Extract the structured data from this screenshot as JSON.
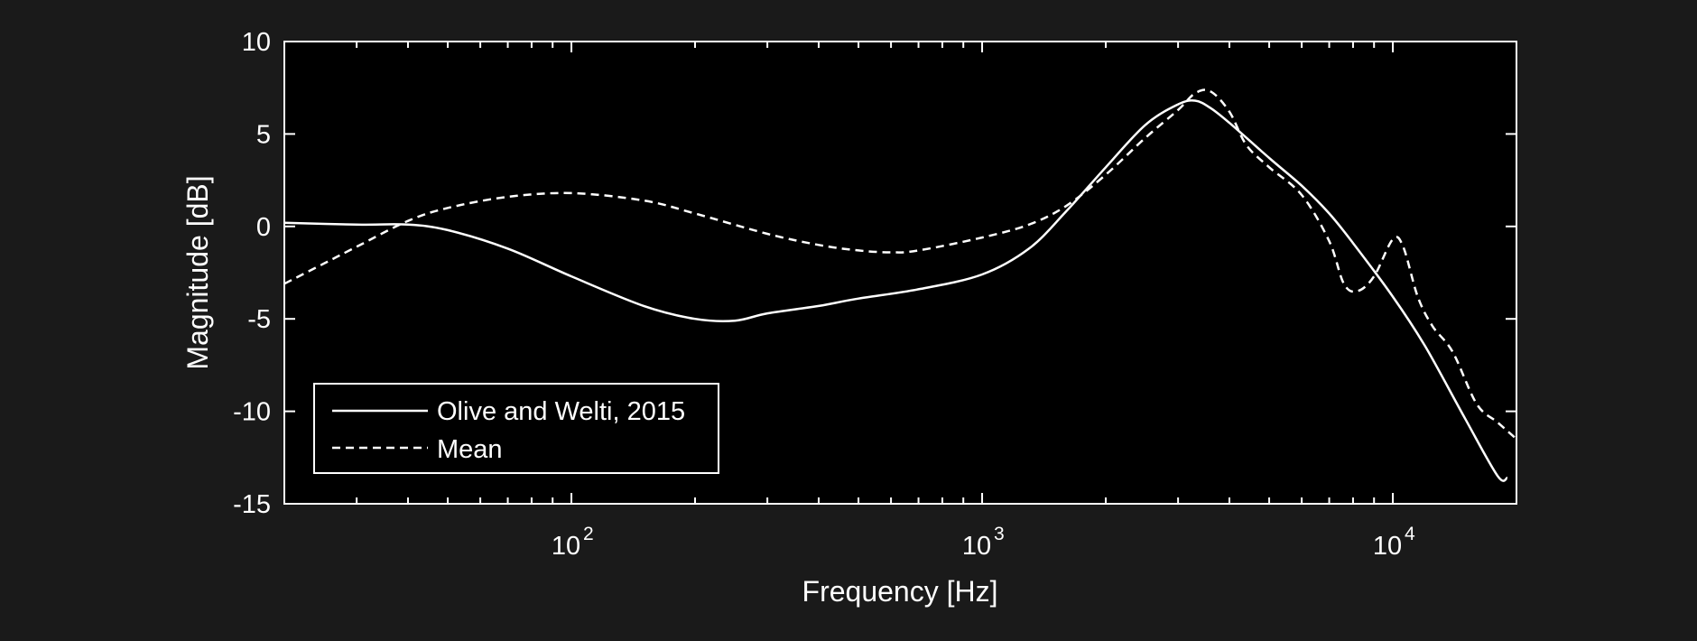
{
  "chart_data": {
    "type": "line",
    "title": "",
    "xlabel": "Frequency [Hz]",
    "ylabel": "Magnitude [dB]",
    "xscale": "log",
    "xlim": [
      20,
      20000
    ],
    "ylim": [
      -15,
      10
    ],
    "yticks": [
      {
        "value": 10,
        "label": "10"
      },
      {
        "value": 5,
        "label": "5"
      },
      {
        "value": 0,
        "label": "0"
      },
      {
        "value": -5,
        "label": "-5"
      },
      {
        "value": -10,
        "label": "-10"
      },
      {
        "value": -15,
        "label": "-15"
      }
    ],
    "xticks": [
      {
        "value": 100,
        "base": "10",
        "exp": "2"
      },
      {
        "value": 1000,
        "base": "10",
        "exp": "3"
      },
      {
        "value": 10000,
        "base": "10",
        "exp": "4"
      }
    ],
    "grid": false,
    "legend_position": "bottom-left",
    "colors": {
      "background": "#1a1a1a",
      "plot_area": "#000000",
      "foreground": "#ffffff"
    },
    "series": [
      {
        "name": "Olive and Welti, 2015",
        "style": "solid",
        "x": [
          20,
          30,
          40,
          50,
          70,
          100,
          150,
          200,
          250,
          300,
          400,
          500,
          700,
          1000,
          1300,
          1600,
          2000,
          2500,
          3000,
          3300,
          3600,
          4000,
          5000,
          6000,
          7000,
          8000,
          10000,
          12000,
          15000,
          18000,
          19000
        ],
        "y": [
          0.2,
          0.1,
          0.1,
          -0.2,
          -1.2,
          -2.7,
          -4.3,
          -5.0,
          -5.1,
          -4.7,
          -4.3,
          -3.9,
          -3.4,
          -2.6,
          -1.2,
          0.8,
          3.2,
          5.5,
          6.6,
          6.8,
          6.4,
          5.6,
          3.7,
          2.2,
          0.7,
          -0.9,
          -3.8,
          -6.5,
          -10.4,
          -13.5,
          -13.6
        ]
      },
      {
        "name": "Mean",
        "style": "dashed",
        "x": [
          20,
          25,
          30,
          40,
          50,
          70,
          100,
          150,
          200,
          300,
          400,
          500,
          600,
          700,
          1000,
          1300,
          1600,
          2000,
          2500,
          3000,
          3300,
          3600,
          4000,
          4400,
          5000,
          6000,
          7000,
          7600,
          8200,
          9000,
          10000,
          10600,
          11500,
          12500,
          14000,
          16000,
          18000,
          20000
        ],
        "y": [
          -3.1,
          -2.0,
          -1.1,
          0.3,
          1.0,
          1.6,
          1.8,
          1.4,
          0.7,
          -0.4,
          -1.0,
          -1.3,
          -1.4,
          -1.3,
          -0.6,
          0.1,
          1.1,
          2.8,
          4.8,
          6.3,
          7.2,
          7.3,
          6.2,
          4.4,
          3.2,
          1.7,
          -0.8,
          -3.1,
          -3.5,
          -2.7,
          -0.7,
          -1.1,
          -3.8,
          -5.4,
          -6.8,
          -9.6,
          -10.6,
          -11.5
        ]
      }
    ]
  }
}
